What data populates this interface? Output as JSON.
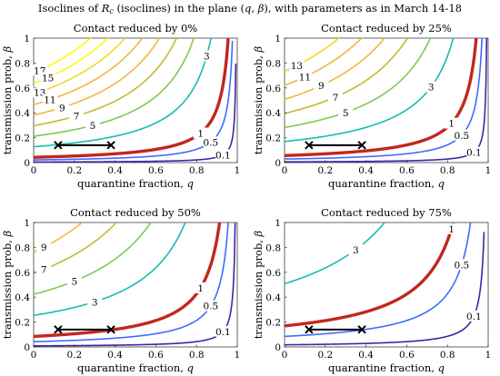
{
  "figure": {
    "title": "Isoclines of R_c (isoclines) in the plane (q, β), with parameters as in March 14-18",
    "title_parts": {
      "pre": "Isoclines of ",
      "sym": "R",
      "sub": "c",
      "mid": " (isoclines) in the plane (",
      "q": "q",
      "comma": ", ",
      "beta": "β",
      "post": "), with parameters as in March 14-18"
    }
  },
  "chart_data": [
    {
      "type": "contour",
      "title": "Contact reduced by 0%",
      "xlabel": "quarantine fraction, q",
      "ylabel": "transmission prob, β",
      "xlim": [
        0,
        1
      ],
      "ylim": [
        0,
        1
      ],
      "xticks": [
        "0",
        "0.2",
        "0.4",
        "0.6",
        "0.8",
        "1"
      ],
      "yticks": [
        "0",
        "0.2",
        "0.4",
        "0.6",
        "0.8",
        "1"
      ],
      "levels": [
        0.1,
        0.5,
        1,
        3,
        5,
        7,
        9,
        11,
        13,
        15,
        17
      ],
      "critical_level": 1,
      "scale": 1.0,
      "labels_shown": [
        "17",
        "15",
        "13",
        "11",
        "9",
        "7",
        "5",
        "3",
        "1",
        "0.5",
        "0.1"
      ],
      "marker_segment": {
        "q": [
          0.12,
          0.38
        ],
        "beta": 0.14
      }
    },
    {
      "type": "contour",
      "title": "Contact reduced by 25%",
      "xlabel": "quarantine fraction, q",
      "ylabel": "transmission prob, β",
      "xlim": [
        0,
        1
      ],
      "ylim": [
        0,
        1
      ],
      "xticks": [
        "0",
        "0.2",
        "0.4",
        "0.6",
        "0.8",
        "1"
      ],
      "yticks": [
        "0",
        "0.2",
        "0.4",
        "0.6",
        "0.8",
        "1"
      ],
      "levels": [
        0.1,
        0.5,
        1,
        3,
        5,
        7,
        9,
        11,
        13
      ],
      "critical_level": 1,
      "scale": 0.75,
      "labels_shown": [
        "13",
        "11",
        "9",
        "7",
        "5",
        "3",
        "1",
        "0.5",
        "0.1"
      ],
      "marker_segment": {
        "q": [
          0.12,
          0.38
        ],
        "beta": 0.14
      }
    },
    {
      "type": "contour",
      "title": "Contact reduced by 50%",
      "xlabel": "quarantine fraction, q",
      "ylabel": "transmission prob, β",
      "xlim": [
        0,
        1
      ],
      "ylim": [
        0,
        1
      ],
      "xticks": [
        "0",
        "0.2",
        "0.4",
        "0.6",
        "0.8",
        "1"
      ],
      "yticks": [
        "0",
        "0.2",
        "0.4",
        "0.6",
        "0.8",
        "1"
      ],
      "levels": [
        0.1,
        0.5,
        1,
        3,
        5,
        7,
        9
      ],
      "critical_level": 1,
      "scale": 0.5,
      "labels_shown": [
        "9",
        "7",
        "5",
        "3",
        "1",
        "0.5",
        "0.1"
      ],
      "marker_segment": {
        "q": [
          0.12,
          0.38
        ],
        "beta": 0.14
      }
    },
    {
      "type": "contour",
      "title": "Contact reduced by 75%",
      "xlabel": "quarantine fraction, q",
      "ylabel": "transmission prob, β",
      "xlim": [
        0,
        1
      ],
      "ylim": [
        0,
        1
      ],
      "xticks": [
        "0",
        "0.2",
        "0.4",
        "0.6",
        "0.8",
        "1"
      ],
      "yticks": [
        "0",
        "0.2",
        "0.4",
        "0.6",
        "0.8",
        "1"
      ],
      "levels": [
        0.1,
        0.5,
        1,
        3
      ],
      "critical_level": 1,
      "scale": 0.25,
      "labels_shown": [
        "3",
        "1",
        "0.5",
        "0.1"
      ],
      "marker_segment": {
        "q": [
          0.12,
          0.38
        ],
        "beta": 0.14
      }
    }
  ],
  "colors": {
    "critical": "#c0281c",
    "marker": "#000000",
    "colormap": [
      "#3e26a8",
      "#4744e9",
      "#3e6bff",
      "#2b91f4",
      "#1fb0d2",
      "#13bdb1",
      "#37c88b",
      "#7fcb53",
      "#c2bb2c",
      "#f0b93a",
      "#f5d81f",
      "#f9fb0e"
    ]
  }
}
